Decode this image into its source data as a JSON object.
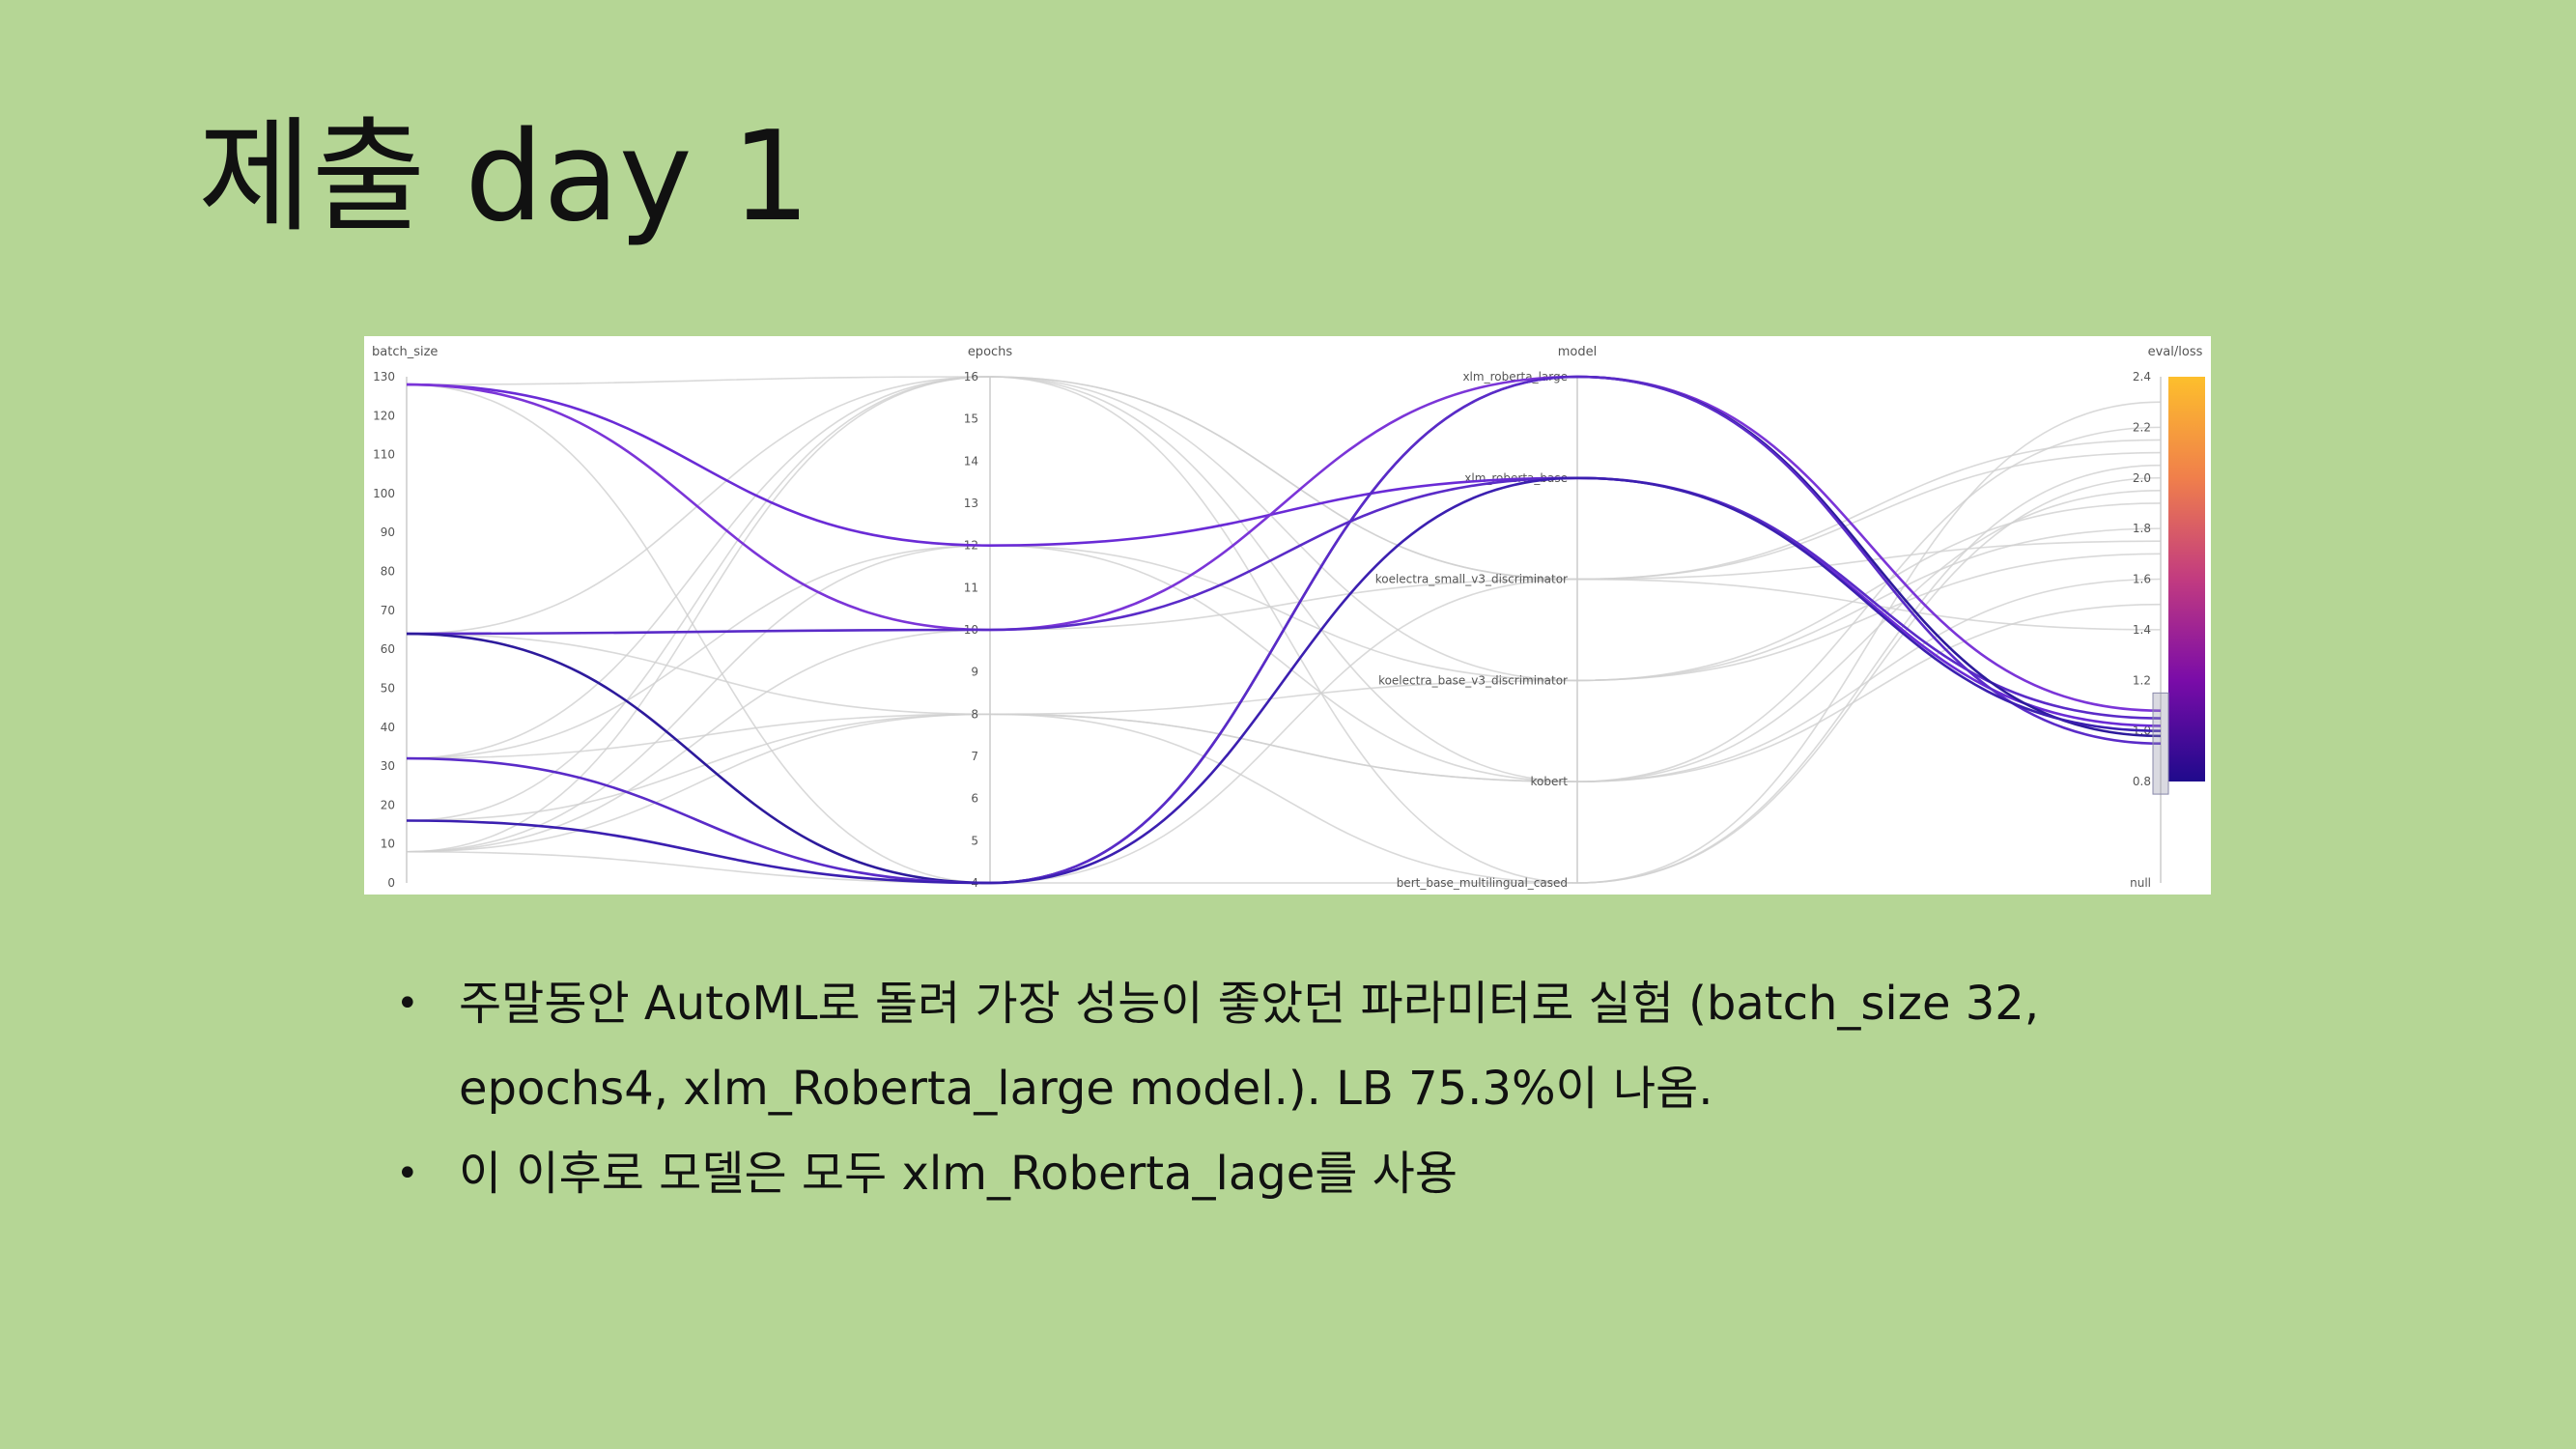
{
  "slide": {
    "title": "제출 day 1",
    "bullets": [
      "주말동안 AutoML로 돌려 가장 성능이 좋았던 파라미터로 실험 (batch_size 32, epochs4, xlm_Roberta_large model.). LB 75.3%이 나옴.",
      "이 이후로 모델은 모두 xlm_Roberta_lage를 사용"
    ],
    "bullet_glyph": "•",
    "background_color": "#b5d695"
  },
  "chart_data": {
    "type": "parallel-coordinates",
    "axes": [
      {
        "name": "batch_size",
        "ticks": [
          "130",
          "120",
          "110",
          "100",
          "90",
          "80",
          "70",
          "60",
          "50",
          "40",
          "30",
          "20",
          "10",
          "0"
        ],
        "range": [
          0,
          130
        ]
      },
      {
        "name": "epochs",
        "ticks": [
          "16",
          "15",
          "14",
          "13",
          "12",
          "11",
          "10",
          "9",
          "8",
          "7",
          "6",
          "5",
          "4"
        ],
        "range": [
          4,
          16
        ]
      },
      {
        "name": "model",
        "categories": [
          "xlm_roberta_large",
          "xlm_roberta_base",
          "koelectra_small_v3_discriminator",
          "koelectra_base_v3_discriminator",
          "kobert",
          "bert_base_multilingual_cased"
        ]
      },
      {
        "name": "eval/loss",
        "ticks": [
          "2.4",
          "2.2",
          "2.0",
          "1.8",
          "1.6",
          "1.4",
          "1.2",
          "1.0",
          "0.8",
          "null"
        ],
        "range": [
          0.8,
          2.4
        ]
      }
    ],
    "colorbar": {
      "min": 0.8,
      "max": 2.4,
      "colors": [
        "#1f0a8c",
        "#7a0ca8",
        "#c23b80",
        "#f07f4b",
        "#fdbf2c"
      ]
    },
    "highlighted_runs": [
      {
        "batch_size": 128,
        "epochs": 12,
        "model": "xlm_roberta_base",
        "eval_loss": 1.02,
        "color": "#6a2bd6"
      },
      {
        "batch_size": 128,
        "epochs": 10,
        "model": "xlm_roberta_large",
        "eval_loss": 1.08,
        "color": "#7b35d8"
      },
      {
        "batch_size": 64,
        "epochs": 10,
        "model": "xlm_roberta_base",
        "eval_loss": 1.05,
        "color": "#5a2bc8"
      },
      {
        "batch_size": 64,
        "epochs": 4,
        "model": "xlm_roberta_large",
        "eval_loss": 0.98,
        "color": "#2d1a9c"
      },
      {
        "batch_size": 32,
        "epochs": 4,
        "model": "xlm_roberta_large",
        "eval_loss": 0.95,
        "color": "#5a2bc8"
      },
      {
        "batch_size": 16,
        "epochs": 4,
        "model": "xlm_roberta_base",
        "eval_loss": 1.0,
        "color": "#3b1fb0"
      }
    ],
    "background_runs": [
      {
        "batch_size": 128,
        "epochs": 16,
        "model": "koelectra_small_v3_discriminator",
        "eval_loss": 2.1
      },
      {
        "batch_size": 8,
        "epochs": 16,
        "model": "kobert",
        "eval_loss": 2.2
      },
      {
        "batch_size": 8,
        "epochs": 12,
        "model": "koelectra_base_v3_discriminator",
        "eval_loss": 1.9
      },
      {
        "batch_size": 32,
        "epochs": 8,
        "model": "bert_base_multilingual_cased",
        "eval_loss": 2.0
      },
      {
        "batch_size": 64,
        "epochs": 8,
        "model": "kobert",
        "eval_loss": 1.5
      },
      {
        "batch_size": 16,
        "epochs": 16,
        "model": "koelectra_small_v3_discriminator",
        "eval_loss": 1.4
      },
      {
        "batch_size": 8,
        "epochs": 8,
        "model": "koelectra_base_v3_discriminator",
        "eval_loss": 1.7
      },
      {
        "batch_size": 128,
        "epochs": 4,
        "model": "bert_base_multilingual_cased",
        "eval_loss": 2.3
      },
      {
        "batch_size": 32,
        "epochs": 12,
        "model": "kobert",
        "eval_loss": 1.6
      },
      {
        "batch_size": 64,
        "epochs": 16,
        "model": "koelectra_base_v3_discriminator",
        "eval_loss": 1.8
      },
      {
        "batch_size": 8,
        "epochs": 10,
        "model": "koelectra_small_v3_discriminator",
        "eval_loss": 2.15
      },
      {
        "batch_size": 16,
        "epochs": 8,
        "model": "kobert",
        "eval_loss": 1.95
      },
      {
        "batch_size": 32,
        "epochs": 16,
        "model": "bert_base_multilingual_cased",
        "eval_loss": 2.05
      },
      {
        "batch_size": 8,
        "epochs": 4,
        "model": "koelectra_small_v3_discriminator",
        "eval_loss": 1.75
      }
    ]
  }
}
